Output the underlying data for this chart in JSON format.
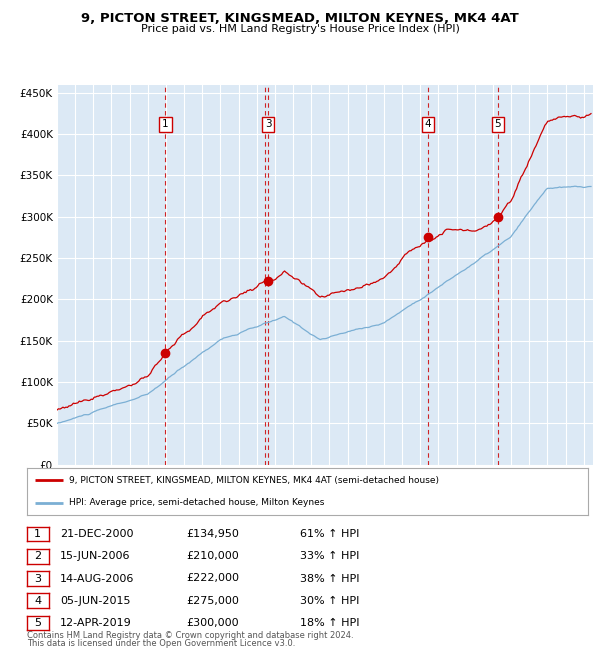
{
  "title1": "9, PICTON STREET, KINGSMEAD, MILTON KEYNES, MK4 4AT",
  "title2": "Price paid vs. HM Land Registry's House Price Index (HPI)",
  "bg_color": "#dce9f5",
  "red_line_color": "#cc0000",
  "blue_line_color": "#7bafd4",
  "grid_color": "#ffffff",
  "vline_color": "#cc0000",
  "legend_label_red": "9, PICTON STREET, KINGSMEAD, MILTON KEYNES, MK4 4AT (semi-detached house)",
  "legend_label_blue": "HPI: Average price, semi-detached house, Milton Keynes",
  "footer1": "Contains HM Land Registry data © Crown copyright and database right 2024.",
  "footer2": "This data is licensed under the Open Government Licence v3.0.",
  "ylim": [
    0,
    460000
  ],
  "yticks": [
    0,
    50000,
    100000,
    150000,
    200000,
    250000,
    300000,
    350000,
    400000,
    450000
  ],
  "purchases": [
    {
      "num": 1,
      "date": "21-DEC-2000",
      "price": 134950,
      "year": 2000.97,
      "hpi_pct": "61% ↑ HPI"
    },
    {
      "num": 2,
      "date": "15-JUN-2006",
      "price": 210000,
      "year": 2006.46,
      "hpi_pct": "33% ↑ HPI"
    },
    {
      "num": 3,
      "date": "14-AUG-2006",
      "price": 222000,
      "year": 2006.62,
      "hpi_pct": "38% ↑ HPI"
    },
    {
      "num": 4,
      "date": "05-JUN-2015",
      "price": 275000,
      "year": 2015.43,
      "hpi_pct": "30% ↑ HPI"
    },
    {
      "num": 5,
      "date": "12-APR-2019",
      "price": 300000,
      "year": 2019.28,
      "hpi_pct": "18% ↑ HPI"
    }
  ],
  "show_purchases_on_chart": [
    1,
    3,
    4,
    5
  ],
  "xmin": 1995.0,
  "xmax": 2024.5
}
